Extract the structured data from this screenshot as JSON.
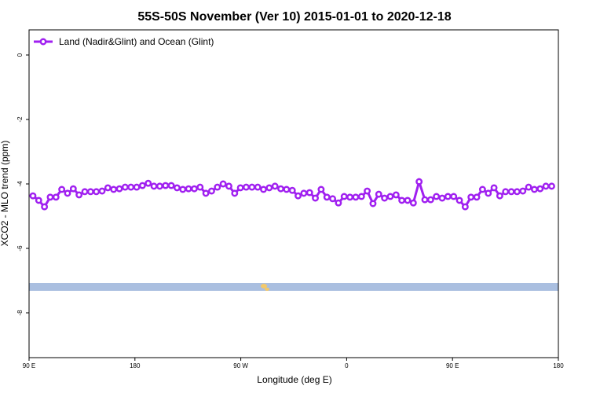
{
  "chart_data": {
    "type": "line",
    "title": "55S-50S November (Ver 10)   2015-01-01 to 2020-12-18",
    "x_label": "Longitude (deg E)",
    "y_label": "XCO2 - MLO trend (ppm)",
    "xlim": [
      90,
      540
    ],
    "ylim": [
      -9.39,
      0.78
    ],
    "xticks": [
      {
        "value": 90,
        "label": "90 E"
      },
      180,
      {
        "value": 270,
        "label": "90 W"
      },
      {
        "value": 360,
        "label": "0"
      },
      {
        "value": 450,
        "label": "90 E"
      },
      {
        "value": 540,
        "label": "180"
      }
    ],
    "yticks": [
      0,
      -2,
      -4,
      -6,
      -8
    ],
    "legend": "top-left",
    "series": [
      {
        "name": "Land (Nadir&Glint) and Ocean (Glint)",
        "color": "#a020f0",
        "x": [
          93.3,
          98.2,
          103.1,
          108.0,
          112.9,
          117.8,
          122.7,
          127.6,
          132.5,
          137.4,
          142.3,
          147.2,
          152.1,
          157.0,
          161.9,
          166.8,
          171.7,
          176.6,
          181.5,
          186.4,
          191.3,
          196.2,
          201.1,
          206.0,
          210.9,
          215.8,
          220.7,
          225.6,
          230.5,
          235.4,
          240.3,
          245.2,
          250.1,
          255.0,
          259.9,
          264.8,
          269.7,
          274.6,
          279.5,
          284.4,
          289.3,
          294.2,
          299.1,
          304.0,
          308.9,
          313.8,
          318.7,
          323.6,
          328.5,
          333.4,
          338.3,
          343.2,
          348.1,
          353.0,
          357.9,
          362.8,
          367.7,
          372.6,
          377.5,
          382.4,
          387.3,
          392.2,
          397.1,
          402.0,
          406.9,
          411.8,
          416.7,
          421.6,
          426.5,
          431.4,
          436.3,
          441.2,
          446.1,
          451.0,
          455.9,
          460.8,
          465.7,
          470.6,
          475.5,
          480.4,
          485.3,
          490.2,
          495.1,
          500.0,
          504.9,
          509.8,
          514.7,
          519.6,
          524.5,
          529.4,
          534.3
        ],
        "values": [
          -4.37,
          -4.51,
          -4.71,
          -4.41,
          -4.41,
          -4.17,
          -4.29,
          -4.15,
          -4.34,
          -4.24,
          -4.24,
          -4.24,
          -4.22,
          -4.12,
          -4.17,
          -4.15,
          -4.1,
          -4.1,
          -4.1,
          -4.05,
          -3.98,
          -4.07,
          -4.07,
          -4.05,
          -4.05,
          -4.12,
          -4.17,
          -4.15,
          -4.15,
          -4.1,
          -4.29,
          -4.22,
          -4.1,
          -4.0,
          -4.07,
          -4.29,
          -4.12,
          -4.1,
          -4.1,
          -4.1,
          -4.17,
          -4.12,
          -4.07,
          -4.15,
          -4.17,
          -4.2,
          -4.37,
          -4.29,
          -4.27,
          -4.44,
          -4.17,
          -4.41,
          -4.46,
          -4.59,
          -4.39,
          -4.41,
          -4.41,
          -4.39,
          -4.22,
          -4.61,
          -4.32,
          -4.44,
          -4.39,
          -4.34,
          -4.51,
          -4.51,
          -4.59,
          -3.93,
          -4.49,
          -4.49,
          -4.39,
          -4.44,
          -4.39,
          -4.39,
          -4.51,
          -4.71,
          -4.41,
          -4.41,
          -4.17,
          -4.29,
          -4.12,
          -4.37,
          -4.24,
          -4.24,
          -4.24,
          -4.22,
          -4.1,
          -4.17,
          -4.15,
          -4.07,
          -4.07
        ]
      }
    ]
  }
}
